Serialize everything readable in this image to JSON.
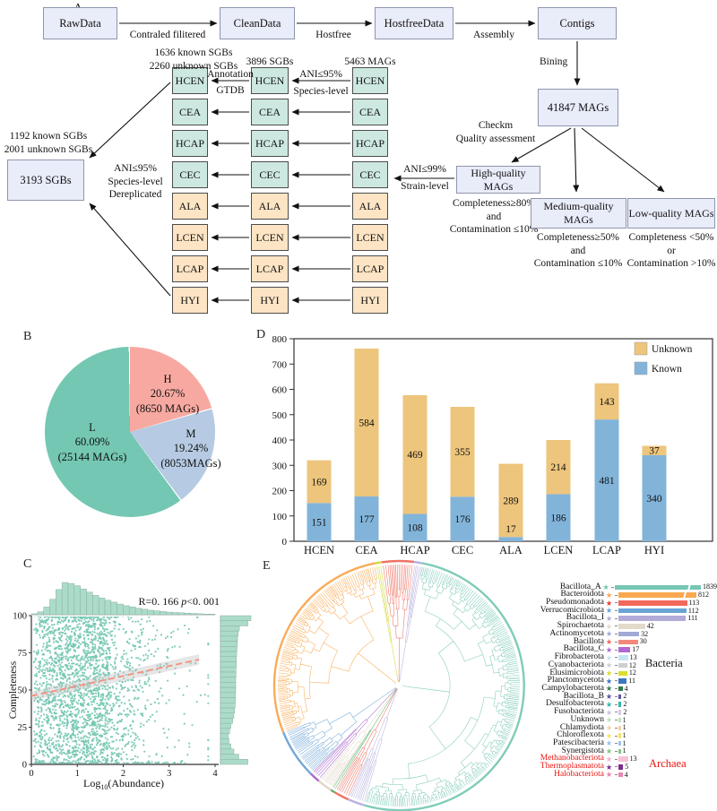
{
  "panels": {
    "a": "A",
    "b": "B",
    "c": "C",
    "d": "D",
    "e": "E"
  },
  "colors": {
    "red": "#e8140f",
    "text": "#111111"
  },
  "panel_a": {
    "flow_boxes": [
      "RawData",
      "CleanData",
      "HostfreeData",
      "Contigs"
    ],
    "flow_arrow_labels": [
      "Contraled filitered",
      "Hostfree",
      "Assembly"
    ],
    "bining_label": "Bining",
    "mags_box": "41847 MAGs",
    "checkm_lines": [
      "Checkm",
      "Quality assessment"
    ],
    "quality_boxes": [
      {
        "label": "High-quality MAGs",
        "criteria": [
          "Completeness≥80%",
          "and",
          "Contamination ≤10%"
        ]
      },
      {
        "label": "Medium-quality MAGs",
        "criteria": [
          "Completeness≥50%",
          "and",
          "Contamination ≤10%"
        ]
      },
      {
        "label": "Low-quality MAGs",
        "criteria": [
          "Completeness <50%",
          "or",
          "Contamination >10%"
        ]
      }
    ],
    "strain_label": [
      "ANI≤99%",
      "Strain-level"
    ],
    "species_label": [
      "ANI≤95%",
      "Species-level"
    ],
    "annotation_label": [
      "Annotation",
      "GTDB"
    ],
    "derep_label": [
      "ANI≤95%",
      "Species-level",
      "Dereplicated"
    ],
    "col_headers": [
      [
        "1636 known SGBs",
        "2260 unknown SGBs"
      ],
      [
        "3896 SGBs"
      ],
      [
        "5463 MAGs"
      ]
    ],
    "sgb_header": [
      "1192 known SGBs",
      "2001 unknown SGBs"
    ],
    "sgb_box": "3193 SGBs",
    "row_boxes": [
      "HCEN",
      "CEA",
      "HCAP",
      "CEC",
      "ALA",
      "LCEN",
      "LCAP",
      "HYI"
    ]
  },
  "chart_data": [
    {
      "type": "pie",
      "slices": [
        {
          "label": "H",
          "pct": 20.67,
          "count": "8650 MAGs",
          "color": "#f7a9a1"
        },
        {
          "label": "M",
          "pct": 19.24,
          "count": "8053MAGs",
          "color": "#b6cbe3"
        },
        {
          "label": "L",
          "pct": 60.09,
          "count": "25144 MAGs",
          "color": "#74c7b3"
        }
      ]
    },
    {
      "type": "bar",
      "stacked": true,
      "categories": [
        {
          "label": "HCEN",
          "red": true
        },
        {
          "label": "CEA",
          "red": true
        },
        {
          "label": "HCAP",
          "red": true
        },
        {
          "label": "CEC",
          "red": true
        },
        {
          "label": "ALA",
          "red": false
        },
        {
          "label": "LCEN",
          "red": false
        },
        {
          "label": "LCAP",
          "red": false
        },
        {
          "label": "HYI",
          "red": false
        }
      ],
      "series": [
        {
          "name": "Known",
          "color": "#82b4da",
          "values": [
            151,
            177,
            108,
            176,
            17,
            186,
            481,
            340
          ]
        },
        {
          "name": "Unknown",
          "color": "#edc57c",
          "values": [
            169,
            584,
            469,
            355,
            289,
            214,
            143,
            37
          ]
        }
      ],
      "ylim": [
        0,
        800
      ],
      "yticks": [
        0,
        100,
        200,
        300,
        400,
        500,
        600,
        700,
        800
      ],
      "legend": [
        "Unknown",
        "Known"
      ]
    },
    {
      "type": "scatter",
      "xlabel_parts": [
        "Log",
        "10",
        "(Abundance)"
      ],
      "ylabel": "Completeness",
      "annotation_parts": [
        "R=0. 166 ",
        "p",
        "<0. 001"
      ],
      "xlim": [
        0,
        4
      ],
      "ylim": [
        0,
        100
      ],
      "xticks": [
        0,
        1,
        2,
        3,
        4
      ],
      "yticks": [
        0,
        25,
        50,
        75,
        100
      ],
      "point_color": "#74c7b3",
      "hist_color": "#abdcca",
      "trend": {
        "x0": 0,
        "y0": 46,
        "x1": 3.65,
        "y1": 70.5,
        "color": "#f2907f"
      },
      "top_hist": [
        3,
        9,
        24,
        48,
        78,
        100,
        97,
        90,
        80,
        70,
        60,
        52,
        45,
        39,
        33,
        28,
        24,
        20,
        17,
        14,
        12,
        10,
        8,
        7,
        6,
        5,
        4,
        3,
        2,
        2
      ],
      "right_hist": [
        100,
        90,
        62,
        58,
        56,
        55,
        54,
        53,
        52,
        52,
        51,
        51,
        50,
        50,
        50,
        49,
        49,
        48,
        46,
        44,
        40,
        34,
        30,
        26,
        28,
        34,
        44,
        60,
        90
      ]
    },
    {
      "type": "tree",
      "bacteria_label": "Bacteria",
      "archaea_label": "Archaea",
      "segments": [
        {
          "color": "#ee6a5c",
          "start": -8,
          "end": 7
        },
        {
          "color": "#b4aedd",
          "start": 7,
          "end": 11
        },
        {
          "color": "#79c8b4",
          "start": 11,
          "end": 196
        },
        {
          "color": "#b4aedd",
          "start": 196,
          "end": 204
        },
        {
          "color": "#ee6a5c",
          "start": 204,
          "end": 211
        },
        {
          "color": "#4fae62",
          "start": 211,
          "end": 213
        },
        {
          "color": "#ded3c1",
          "start": 213,
          "end": 220
        },
        {
          "color": "#a55ecb",
          "start": 220,
          "end": 225
        },
        {
          "color": "#6aa3d5",
          "start": 225,
          "end": 248
        },
        {
          "color": "#f9a84f",
          "start": 248,
          "end": 349
        },
        {
          "color": "#cdd92e",
          "start": 349,
          "end": 352
        }
      ],
      "legend_rows": [
        {
          "name": "Bacillota_A",
          "value": 1839,
          "color": "#76c7b4",
          "star": "#76c7b4",
          "red": false
        },
        {
          "name": "Bacteroidota",
          "value": 812,
          "color": "#f9a84f",
          "star": "#f9a84f",
          "red": false
        },
        {
          "name": "Pseudomonadota",
          "value": 113,
          "color": "#f2685c",
          "star": "#ee3d30",
          "red": false
        },
        {
          "name": "Verrucomicrobiota",
          "value": 112,
          "color": "#6aa3d5",
          "star": "#6aa3d5",
          "red": false
        },
        {
          "name": "Bacillota_I",
          "value": 111,
          "color": "#b0abd8",
          "star": "#b0abd8",
          "red": false
        },
        {
          "name": "Spirochaetota",
          "value": 42,
          "color": "#e3dacc",
          "star": "#e3dacc",
          "red": false
        },
        {
          "name": "Actinomycetota",
          "value": 32,
          "color": "#a2a9d4",
          "star": "#a2a9d4",
          "red": false
        },
        {
          "name": "Bacillota",
          "value": 30,
          "color": "#f2887c",
          "star": "#f2685c",
          "red": false
        },
        {
          "name": "Bacillota_C",
          "value": 17,
          "color": "#b269d2",
          "star": "#b269d2",
          "red": false
        },
        {
          "name": "Fibrobacterota",
          "value": 13,
          "color": "#c6e6f2",
          "star": "#c6e6f2",
          "red": false
        },
        {
          "name": "Cyanobacteriota",
          "value": 12,
          "color": "#cfcfcf",
          "star": "#cfcfcf",
          "red": false
        },
        {
          "name": "Elusimicrobiota",
          "value": 12,
          "color": "#d9df2b",
          "star": "#d9df2b",
          "red": false
        },
        {
          "name": "Planctomycetota",
          "value": 11,
          "color": "#3d77c2",
          "star": "#3d77c2",
          "red": false
        },
        {
          "name": "Campylobacterota",
          "value": 4,
          "color": "#2f7d4e",
          "star": "#2f7d4e",
          "red": false
        },
        {
          "name": "Bacillota_B",
          "value": 2,
          "color": "#5c55a5",
          "star": "#5c55a5",
          "red": false
        },
        {
          "name": "Desulfobacterota",
          "value": 2,
          "color": "#35b5ac",
          "star": "#35b5ac",
          "red": false
        },
        {
          "name": "Fusobacteriota",
          "value": 2,
          "color": "#d8c8e6",
          "star": "#cfc3e0",
          "red": false
        },
        {
          "name": "Unknown",
          "value": 1,
          "color": "#bfe0bf",
          "star": "#bfe0bf",
          "red": false
        },
        {
          "name": "Chlamydiota",
          "value": 1,
          "color": "#f6cfa6",
          "star": "#f6cfa6",
          "red": false
        },
        {
          "name": "Chloroflexota",
          "value": 1,
          "color": "#f3e56a",
          "star": "#f3e56a",
          "red": false
        },
        {
          "name": "Patescibacteria",
          "value": 1,
          "color": "#9cc3ee",
          "star": "#9cc3ee",
          "red": false
        },
        {
          "name": "Synergistota",
          "value": 1,
          "color": "#84c884",
          "star": "#84c884",
          "red": false
        },
        {
          "name": "Methanobacteriota",
          "value": 13,
          "color": "#f6c2d8",
          "star": "#f0b6d0",
          "red": true
        },
        {
          "name": "Thermoplasmatota",
          "value": 5,
          "color": "#7b2f90",
          "star": "#7b2f90",
          "red": true
        },
        {
          "name": "Halobacteriota",
          "value": 4,
          "color": "#e884b0",
          "star": "#e884b0",
          "red": true
        }
      ]
    }
  ]
}
